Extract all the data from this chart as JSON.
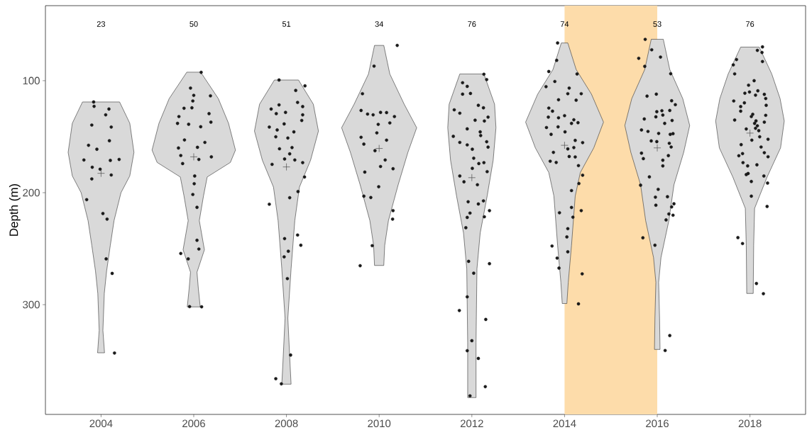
{
  "chart_data": {
    "type": "scatter",
    "ylabel": "Depth (m)",
    "xlim": [
      2002.8,
      2019.2
    ],
    "ylim": [
      398,
      33
    ],
    "xticks": [
      2004,
      2006,
      2008,
      2010,
      2012,
      2014,
      2016,
      2018
    ],
    "yticks": [
      100,
      200,
      300
    ],
    "bands": [
      {
        "axis": "x",
        "from": 2014,
        "to": 2016,
        "color": "#fddcaa"
      }
    ],
    "annotations": [
      "23",
      "50",
      "51",
      "34",
      "76",
      "74",
      "53",
      "76"
    ],
    "series": [
      {
        "type": "area",
        "color": "#d9d9d9",
        "x": [
          2004.4,
          2004.62,
          2004.71,
          2004.62,
          2004.43,
          2004.28,
          2004.2,
          2004.12,
          2004.07,
          2004.04,
          2004.075,
          2003.925,
          2003.96,
          2003.93,
          2003.88,
          2003.8,
          2003.72,
          2003.57,
          2003.38,
          2003.29,
          2003.38,
          2003.6
        ],
        "values": [
          119,
          138,
          164,
          185,
          200,
          225,
          247,
          270,
          290,
          323,
          343,
          343,
          323,
          290,
          270,
          247,
          225,
          200,
          185,
          164,
          138,
          119
        ]
      },
      {
        "type": "area",
        "color": "#d9d9d9",
        "x": [
          2006.15,
          2006.53,
          2006.75,
          2006.9,
          2006.79,
          2006.29,
          2006.21,
          2006.12,
          2006.23,
          2006.07,
          2006.1,
          2006.14,
          2005.86,
          2005.9,
          2005.93,
          2005.77,
          2005.88,
          2005.79,
          2005.71,
          2005.21,
          2005.1,
          2005.25,
          2005.47,
          2005.85
        ],
        "values": [
          92.4,
          116,
          138,
          162,
          173,
          186,
          203,
          225,
          251,
          271,
          286,
          302,
          302,
          286,
          271,
          251,
          225,
          203,
          186,
          173,
          162,
          138,
          116,
          92.4
        ]
      },
      {
        "type": "area",
        "color": "#d9d9d9",
        "x": [
          2008.26,
          2008.58,
          2008.69,
          2008.52,
          2008.28,
          2008.18,
          2008.1,
          2008.03,
          2008.08,
          2008.1,
          2007.9,
          2007.92,
          2007.97,
          2007.9,
          2007.82,
          2007.72,
          2007.48,
          2007.31,
          2007.42,
          2007.74
        ],
        "values": [
          99.4,
          121,
          145,
          171,
          195,
          225,
          268,
          312,
          355,
          371,
          371,
          355,
          312,
          268,
          225,
          195,
          171,
          145,
          121,
          99.4
        ]
      },
      {
        "type": "area",
        "color": "#d9d9d9",
        "x": [
          2010.1,
          2010.23,
          2010.54,
          2010.81,
          2010.62,
          2010.41,
          2010.2,
          2010.12,
          2010.1,
          2009.9,
          2009.88,
          2009.8,
          2009.59,
          2009.38,
          2009.19,
          2009.46,
          2009.77,
          2009.9
        ],
        "values": [
          68.5,
          94,
          121,
          142,
          164,
          193,
          225,
          247,
          265,
          265,
          247,
          225,
          193,
          164,
          142,
          121,
          94,
          68.5
        ]
      },
      {
        "type": "area",
        "color": "#d9d9d9",
        "x": [
          2012.26,
          2012.49,
          2012.52,
          2012.46,
          2012.33,
          2012.18,
          2012.11,
          2012.09,
          2012.09,
          2011.91,
          2011.91,
          2011.89,
          2011.82,
          2011.67,
          2011.54,
          2011.48,
          2011.51,
          2011.74
        ],
        "values": [
          94,
          121,
          142,
          171,
          203,
          236,
          268,
          334,
          383,
          383,
          334,
          268,
          236,
          203,
          171,
          142,
          121,
          94
        ]
      },
      {
        "type": "area",
        "color": "#d9d9d9",
        "x": [
          2014.07,
          2014.25,
          2014.58,
          2014.84,
          2014.63,
          2014.34,
          2014.23,
          2014.15,
          2014.08,
          2014.05,
          2013.95,
          2013.92,
          2013.85,
          2013.77,
          2013.66,
          2013.37,
          2013.16,
          2013.42,
          2013.75,
          2013.93
        ],
        "values": [
          66.3,
          90,
          112,
          137,
          160,
          182,
          203,
          247,
          280,
          299,
          299,
          280,
          247,
          203,
          182,
          160,
          137,
          112,
          90,
          66.3
        ]
      },
      {
        "type": "area",
        "color": "#d9d9d9",
        "x": [
          2016.13,
          2016.27,
          2016.55,
          2016.7,
          2016.57,
          2016.36,
          2016.25,
          2016.08,
          2016.03,
          2016.05,
          2016.06,
          2015.94,
          2015.95,
          2015.97,
          2015.92,
          2015.75,
          2015.64,
          2015.43,
          2015.3,
          2015.45,
          2015.73,
          2015.87
        ],
        "values": [
          63,
          90,
          116,
          140,
          164,
          193,
          225,
          258,
          280,
          312,
          340,
          340,
          312,
          280,
          258,
          225,
          193,
          164,
          140,
          116,
          90,
          63
        ]
      },
      {
        "type": "area",
        "color": "#d9d9d9",
        "x": [
          2018.2,
          2018.47,
          2018.65,
          2018.74,
          2018.66,
          2018.37,
          2018.1,
          2018.08,
          2018.07,
          2017.93,
          2017.92,
          2017.9,
          2017.63,
          2017.34,
          2017.26,
          2017.35,
          2017.53,
          2017.8
        ],
        "values": [
          70,
          94,
          116,
          136,
          160,
          186,
          214,
          247,
          290,
          290,
          247,
          214,
          186,
          160,
          136,
          116,
          94,
          70
        ]
      },
      {
        "marker": "circle",
        "color": "#1a1a1a",
        "x": [
          2003.84,
          2003.85,
          2004.17,
          2004.1,
          2003.8,
          2004.22,
          2004.18,
          2003.73,
          2003.91,
          2003.63,
          2004.2,
          2004.39,
          2003.81,
          2003.98,
          2004.22,
          2003.8,
          2003.69,
          2004.04,
          2004.13,
          2004.11,
          2004.24,
          2004.29,
          2006.16,
          2005.93,
          2006.0,
          2006.36,
          2005.98,
          2005.79,
          2005.96,
          2005.68,
          2006.33,
          2005.65,
          2005.89,
          2006.37,
          2006.15,
          2005.8,
          2006.24,
          2005.67,
          2006.08,
          2005.72,
          2006.11,
          2006.38,
          2005.76,
          2006.02,
          2006.01,
          2005.98,
          2006.07,
          2006.07,
          2006.11,
          2005.72,
          2005.88,
          2005.91,
          2006.17,
          2007.84,
          2008.4,
          2008.2,
          2007.67,
          2007.84,
          2008.24,
          2008.35,
          2007.98,
          2007.78,
          2008.35,
          2007.63,
          2007.95,
          2008.33,
          2007.8,
          2008.16,
          2007.77,
          2008.03,
          2007.85,
          2008.12,
          2008.07,
          2007.96,
          2007.69,
          2008.18,
          2008.35,
          2008.39,
          2008.25,
          2008.07,
          2007.63,
          2007.96,
          2008.24,
          2008.31,
          2008.04,
          2007.95,
          2008.02,
          2008.09,
          2007.77,
          2007.89,
          2010.39,
          2009.89,
          2009.64,
          2009.61,
          2009.75,
          2009.87,
          2010.03,
          2010.16,
          2010.33,
          2009.98,
          2010.23,
          2009.95,
          2009.61,
          2009.67,
          2010.16,
          2009.91,
          2010.13,
          2010.03,
          2010.3,
          2009.69,
          2009.99,
          2009.67,
          2009.82,
          2010.3,
          2010.29,
          2009.85,
          2009.59,
          2012.26,
          2012.32,
          2011.8,
          2011.9,
          2011.8,
          2011.97,
          2011.62,
          2012.14,
          2012.25,
          2011.74,
          2012.35,
          2012.07,
          2012.27,
          2011.9,
          2011.6,
          2012.18,
          2012.19,
          2011.74,
          2012.32,
          2011.9,
          2012.01,
          2012.35,
          2012.04,
          2012.15,
          2012.26,
          2012.01,
          2012.33,
          2011.74,
          2011.83,
          2012.12,
          2011.92,
          2012.14,
          2012.25,
          2012.38,
          2011.96,
          2011.9,
          2012.27,
          2011.87,
          2011.93,
          2012.38,
          2012.04,
          2011.9,
          2011.73,
          2012.3,
          2012.0,
          2011.9,
          2012.14,
          2011.96,
          2012.29,
          2013.85,
          2013.83,
          2013.66,
          2014.27,
          2013.79,
          2013.6,
          2014.1,
          2014.36,
          2014.07,
          2013.87,
          2014.25,
          2013.66,
          2013.74,
          2014.0,
          2013.87,
          2014.2,
          2014.29,
          2013.65,
          2013.61,
          2013.86,
          2014.15,
          2013.71,
          2014.01,
          2014.23,
          2014.39,
          2014.07,
          2014.2,
          2013.76,
          2014.1,
          2014.23,
          2013.69,
          2013.82,
          2014.3,
          2014.39,
          2014.31,
          2014.15,
          2013.89,
          2014.15,
          2014.36,
          2014.18,
          2014.07,
          2014.05,
          2013.73,
          2014.07,
          2013.84,
          2013.88,
          2014.38,
          2014.3,
          2015.74,
          2015.88,
          2016.07,
          2015.6,
          2015.73,
          2016.29,
          2015.98,
          2015.78,
          2016.31,
          2016.39,
          2016.1,
          2016.27,
          2015.99,
          2016.12,
          2016.32,
          2015.72,
          2016.16,
          2015.97,
          2015.66,
          2015.8,
          2016.03,
          2016.28,
          2016.34,
          2015.87,
          2015.99,
          2016.26,
          2016.3,
          2015.66,
          2015.7,
          2016.24,
          2016.12,
          2016.12,
          2015.83,
          2015.64,
          2016.02,
          2016.22,
          2015.96,
          2015.97,
          2016.36,
          2016.31,
          2016.25,
          2016.34,
          2016.19,
          2015.69,
          2015.95,
          2016.27,
          2016.17,
          2018.27,
          2018.16,
          2018.26,
          2017.71,
          2017.64,
          2018.27,
          2017.67,
          2018.09,
          2017.97,
          2017.89,
          2017.99,
          2018.17,
          2018.12,
          2018.31,
          2018.34,
          2017.65,
          2017.88,
          2017.8,
          2018.35,
          2017.8,
          2018.06,
          2018.03,
          2018.34,
          2017.67,
          2018.13,
          2018.31,
          2018.1,
          2018.16,
          2018.12,
          2018.19,
          2017.92,
          2018.04,
          2018.21,
          2018.39,
          2017.81,
          2018.24,
          2017.84,
          2017.76,
          2018.31,
          2018.39,
          2017.85,
          2017.95,
          2018.15,
          2017.92,
          2017.96,
          2018.03,
          2018.3,
          2018.38,
          2018.03,
          2018.37,
          2017.74,
          2017.84,
          2018.14,
          2018.29
        ],
        "values": [
          119.0,
          122.9,
          125.3,
          130.5,
          139.6,
          141.4,
          153.6,
          157.7,
          161.2,
          170.8,
          171.2,
          170.3,
          177.3,
          179.0,
          184.2,
          187.7,
          206.2,
          218.6,
          223.6,
          259.1,
          272.1,
          343.2,
          92.5,
          106.6,
          113.1,
          113.5,
          118.1,
          124.6,
          124.2,
          132.0,
          129.4,
          138.1,
          138.9,
          137.0,
          141.1,
          152.9,
          155.1,
          160.1,
          159.5,
          166.8,
          170.3,
          168.0,
          174.0,
          185.1,
          192.0,
          201.6,
          213.1,
          242.5,
          250.3,
          254.3,
          259.1,
          301.7,
          301.9,
          99.4,
          104.6,
          108.7,
          125.3,
          121.6,
          119.4,
          123.1,
          128.3,
          129.4,
          130.5,
          141.4,
          138.6,
          135.5,
          144.0,
          145.7,
          150.1,
          151.2,
          160.8,
          159.7,
          165.3,
          169.9,
          174.7,
          170.8,
          173.2,
          186.0,
          199.0,
          204.5,
          210.3,
          241.0,
          237.8,
          246.9,
          252.3,
          257.3,
          276.7,
          345.0,
          366.1,
          370.7,
          68.5,
          87.0,
          111.6,
          126.6,
          129.8,
          130.5,
          128.3,
          128.5,
          132.0,
          139.0,
          137.7,
          146.6,
          150.5,
          156.6,
          153.1,
          162.5,
          170.8,
          176.6,
          178.6,
          181.6,
          194.7,
          203.1,
          204.3,
          216.0,
          223.6,
          247.3,
          265.2,
          94.2,
          99.0,
          101.8,
          105.1,
          112.0,
          111.4,
          126.0,
          122.0,
          124.2,
          129.0,
          132.5,
          135.3,
          136.0,
          143.0,
          149.7,
          145.7,
          149.0,
          155.1,
          154.5,
          157.3,
          161.2,
          159.3,
          169.2,
          174.0,
          173.2,
          178.3,
          181.2,
          185.1,
          190.3,
          192.9,
          208.1,
          210.1,
          207.3,
          216.0,
          218.2,
          222.1,
          221.5,
          231.3,
          261.3,
          263.4,
          271.9,
          293.0,
          305.2,
          313.2,
          332.2,
          341.1,
          348.0,
          381.4,
          373.2,
          66.3,
          81.8,
          91.8,
          94.0,
          100.7,
          105.3,
          106.6,
          111.6,
          111.6,
          117.0,
          117.4,
          124.4,
          127.2,
          131.2,
          133.1,
          134.9,
          137.5,
          132.5,
          141.8,
          141.2,
          138.1,
          147.9,
          145.7,
          153.3,
          155.3,
          160.9,
          159.7,
          164.0,
          167.7,
          168.1,
          171.9,
          173.0,
          175.8,
          184.4,
          191.8,
          198.1,
          217.9,
          213.2,
          216.0,
          221.9,
          232.1,
          239.5,
          247.6,
          252.8,
          258.4,
          267.3,
          272.5,
          299.3,
          63.1,
          72.4,
          78.9,
          80.0,
          87.2,
          93.8,
          112.0,
          113.8,
          117.9,
          121.4,
          126.8,
          126.6,
          127.7,
          130.7,
          135.5,
          134.2,
          138.1,
          132.3,
          144.0,
          145.3,
          147.1,
          147.9,
          147.3,
          153.8,
          154.4,
          155.9,
          159.2,
          164.7,
          169.6,
          166.9,
          171.0,
          176.1,
          185.9,
          193.3,
          197.0,
          203.6,
          204.0,
          211.2,
          209.9,
          212.7,
          219.0,
          220.1,
          224.3,
          240.3,
          246.9,
          327.6,
          340.9,
          69.8,
          72.9,
          74.8,
          81.1,
          85.9,
          82.9,
          93.9,
          100.0,
          104.0,
          111.2,
          110.1,
          109.0,
          112.9,
          112.2,
          115.9,
          118.1,
          119.8,
          123.1,
          122.0,
          127.2,
          130.0,
          132.0,
          130.9,
          135.1,
          135.9,
          137.0,
          138.1,
          140.3,
          142.5,
          144.6,
          143.1,
          153.1,
          150.1,
          152.3,
          157.1,
          159.2,
          165.1,
          167.0,
          164.3,
          167.9,
          173.2,
          176.1,
          175.1,
          183.8,
          182.9,
          190.0,
          185.1,
          191.4,
          203.1,
          212.3,
          240.1,
          245.4,
          281.1,
          290.2
        ]
      },
      {
        "type": "scatter",
        "marker": "cross",
        "color": "#4d4d4d",
        "x": [
          2004,
          2006,
          2008,
          2010,
          2012,
          2014,
          2016,
          2018
        ],
        "values": [
          182.7,
          168,
          177,
          160.5,
          186.6,
          157.7,
          160,
          146.8
        ]
      }
    ]
  }
}
